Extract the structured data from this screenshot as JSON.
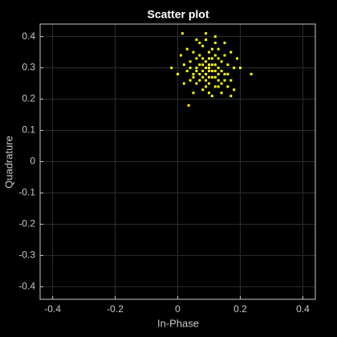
{
  "chart_data": {
    "type": "scatter",
    "title": "Scatter plot",
    "x_label": "In-Phase",
    "y_label": "Quadrature",
    "x": [
      0.1,
      0.08,
      0.12,
      0.06,
      0.14,
      0.09,
      0.11,
      0.07,
      0.13,
      0.05,
      0.15,
      0.1,
      0.04,
      0.12,
      0.08,
      0.16,
      0.09,
      0.11,
      0.1,
      0.07,
      0.13,
      0.03,
      0.17,
      0.06,
      0.14,
      0.02,
      0.18,
      0.08,
      0.12,
      0.1,
      0.05,
      0.15,
      0.09,
      0.11,
      0.07,
      0.13,
      0.1,
      0.08,
      0.12,
      0.06,
      0.16,
      0.04,
      0.14,
      0.01,
      0.19,
      0.03,
      0.17,
      0.09,
      0.11,
      0.13,
      0.235,
      0.035,
      0.015,
      -0.02,
      0.09,
      0.2,
      0.0,
      0.05,
      0.15,
      0.12,
      0.07,
      0.1,
      0.08,
      0.14,
      0.06,
      0.11,
      0.09,
      0.12,
      0.1,
      0.13,
      0.02,
      0.18,
      0.16,
      0.04,
      0.07,
      0.11,
      0.05,
      0.15,
      0.08,
      0.12,
      0.17,
      0.06,
      0.13,
      0.1,
      0.09
    ],
    "series": [
      {
        "color": "#ffff00",
        "values": [
          0.29,
          0.31,
          0.27,
          0.3,
          0.32,
          0.26,
          0.33,
          0.28,
          0.3,
          0.27,
          0.28,
          0.35,
          0.32,
          0.24,
          0.23,
          0.31,
          0.3,
          0.29,
          0.31,
          0.34,
          0.36,
          0.29,
          0.26,
          0.25,
          0.25,
          0.31,
          0.3,
          0.37,
          0.38,
          0.22,
          0.35,
          0.34,
          0.28,
          0.27,
          0.31,
          0.28,
          0.27,
          0.29,
          0.31,
          0.33,
          0.24,
          0.26,
          0.22,
          0.34,
          0.33,
          0.36,
          0.35,
          0.39,
          0.21,
          0.26,
          0.28,
          0.18,
          0.41,
          0.3,
          0.41,
          0.3,
          0.28,
          0.22,
          0.38,
          0.4,
          0.26,
          0.33,
          0.27,
          0.29,
          0.29,
          0.31,
          0.32,
          0.29,
          0.25,
          0.33,
          0.25,
          0.23,
          0.28,
          0.3,
          0.38,
          0.36,
          0.28,
          0.26,
          0.33,
          0.34,
          0.21,
          0.39,
          0.24,
          0.3,
          0.24
        ]
      }
    ],
    "xlim": [
      -0.44,
      0.44
    ],
    "ylim": [
      -0.44,
      0.44
    ],
    "xticks": [
      -0.4,
      -0.2,
      0,
      0.2,
      0.4
    ],
    "yticks": [
      -0.4,
      -0.3,
      -0.2,
      -0.1,
      0,
      0.1,
      0.2,
      0.3,
      0.4
    ],
    "grid": true
  }
}
